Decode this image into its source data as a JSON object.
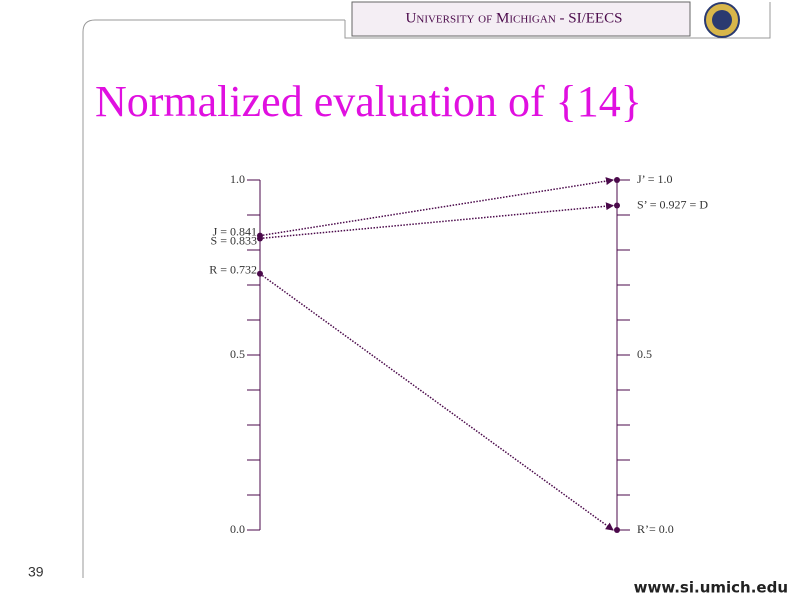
{
  "header": "University of Michigan - SI/EECS",
  "title": "Normalized evaluation of {14}",
  "page_number": "39",
  "footer": "www.si.umich.edu",
  "chart_data": {
    "type": "slope",
    "ylim": [
      0,
      1
    ],
    "yticks": [
      {
        "value": 0,
        "label": "0.0"
      },
      0.5,
      {
        "value": 1,
        "label": "1.0"
      }
    ],
    "y2lim": [
      0,
      1
    ],
    "y2ticks": [
      0.5
    ],
    "minor_ticks": [
      0.1,
      0.2,
      0.3,
      0.4,
      0.6,
      0.7,
      0.8,
      0.9
    ],
    "color": "#4b0a4b",
    "series": [
      {
        "values": [
          0.841,
          1.0
        ],
        "value_labels": [
          "J = 0.841",
          "J’ = 1.0"
        ]
      },
      {
        "values": [
          0.833,
          0.927
        ],
        "value_labels": [
          "S = 0.833",
          "S’ = 0.927 = D"
        ]
      },
      {
        "values": [
          0.732,
          0.0
        ],
        "value_labels": [
          "R = 0.732",
          "R’= 0.0"
        ]
      }
    ]
  }
}
